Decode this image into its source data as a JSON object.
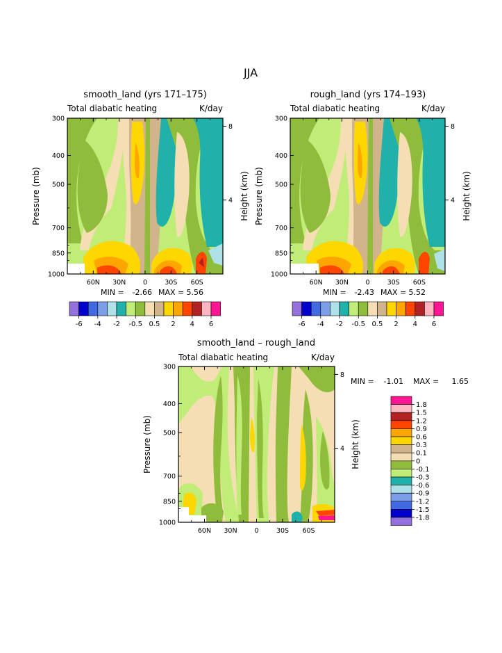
{
  "figure": {
    "season_title": "JJA"
  },
  "palette": [
    {
      "key": "c_n6",
      "hex": "#9370db"
    },
    {
      "key": "c_n5",
      "hex": "#0000cd"
    },
    {
      "key": "c_n4",
      "hex": "#4169e1"
    },
    {
      "key": "c_n3",
      "hex": "#7b9ee6"
    },
    {
      "key": "c_n2",
      "hex": "#aee2e8"
    },
    {
      "key": "c_n1",
      "hex": "#20b2aa"
    },
    {
      "key": "c_m1",
      "hex": "#c0ec78"
    },
    {
      "key": "c_m05",
      "hex": "#8fbc3a"
    },
    {
      "key": "c_p05",
      "hex": "#f5deb3"
    },
    {
      "key": "c_p1",
      "hex": "#d2b48c"
    },
    {
      "key": "c_p2",
      "hex": "#ffd700"
    },
    {
      "key": "c_p3",
      "hex": "#ffa500"
    },
    {
      "key": "c_p4",
      "hex": "#ff4500"
    },
    {
      "key": "c_p5",
      "hex": "#b22222"
    },
    {
      "key": "c_p6",
      "hex": "#ffb6c1"
    },
    {
      "key": "c_p7",
      "hex": "#ff1493"
    }
  ],
  "chart_data": [
    {
      "type": "heatmap",
      "id": "smooth",
      "title": "smooth_land (yrs 171–175)",
      "left_label": "Total diabatic heating",
      "right_label": "K/day",
      "xlabel": "",
      "ylabel": "Pressure (mb)",
      "y2label": "Height (km)",
      "xticks": [
        "60N",
        "30N",
        "0",
        "30S",
        "60S"
      ],
      "x_tick_lat": [
        60,
        30,
        0,
        -30,
        -60
      ],
      "x_range": [
        90,
        -90
      ],
      "pressure_ticks": [
        300,
        400,
        500,
        700,
        850,
        1000
      ],
      "pressure_range": [
        300,
        1000
      ],
      "height_ticks": [
        8,
        4
      ],
      "stats": {
        "min_label": "MIN =",
        "min": "-2.66",
        "max_label": "MAX =",
        "max": "5.56"
      },
      "field": "full"
    },
    {
      "type": "heatmap",
      "id": "rough",
      "title": "rough_land (yrs 174–193)",
      "left_label": "Total diabatic heating",
      "right_label": "K/day",
      "xlabel": "",
      "ylabel": "Pressure (mb)",
      "y2label": "Height (km)",
      "xticks": [
        "60N",
        "30N",
        "0",
        "30S",
        "60S"
      ],
      "x_tick_lat": [
        60,
        30,
        0,
        -30,
        -60
      ],
      "x_range": [
        90,
        -90
      ],
      "pressure_ticks": [
        300,
        400,
        500,
        700,
        850,
        1000
      ],
      "pressure_range": [
        300,
        1000
      ],
      "height_ticks": [
        8,
        4
      ],
      "stats": {
        "min_label": "MIN =",
        "min": "-2.43",
        "max_label": "MAX =",
        "max": "5.52"
      },
      "field": "full"
    },
    {
      "type": "heatmap",
      "id": "diff",
      "title": "smooth_land – rough_land",
      "left_label": "Total diabatic heating",
      "right_label": "K/day",
      "xlabel": "",
      "ylabel": "Pressure (mb)",
      "y2label": "Height (km)",
      "xticks": [
        "60N",
        "30N",
        "0",
        "30S",
        "60S"
      ],
      "x_tick_lat": [
        60,
        30,
        0,
        -30,
        -60
      ],
      "x_range": [
        90,
        -90
      ],
      "pressure_ticks": [
        300,
        400,
        500,
        700,
        850,
        1000
      ],
      "pressure_range": [
        300,
        1000
      ],
      "height_ticks": [
        8,
        4
      ],
      "stats": {
        "min_label": "MIN =",
        "min": "-1.01",
        "max_label": "MAX =",
        "max": "1.65"
      },
      "field": "diff"
    }
  ],
  "colorbar_full": {
    "orientation": "horizontal",
    "labels": [
      "-6",
      "-4",
      "-2",
      "-0.5",
      "0.5",
      "2",
      "4",
      "6"
    ],
    "colors": [
      "c_n6",
      "c_n5",
      "c_n4",
      "c_n3",
      "c_n2",
      "c_n1",
      "c_m1",
      "c_m05",
      "c_p05",
      "c_p1",
      "c_p2",
      "c_p3",
      "c_p4",
      "c_p5",
      "c_p6",
      "c_p7"
    ]
  },
  "colorbar_diff": {
    "orientation": "vertical",
    "labels": [
      "1.8",
      "1.5",
      "1.2",
      "0.9",
      "0.6",
      "0.3",
      "0.1",
      "0",
      "-0.1",
      "-0.3",
      "-0.6",
      "-0.9",
      "-1.2",
      "-1.5",
      "-1.8"
    ],
    "colors": [
      "c_p7",
      "c_p6",
      "c_p5",
      "c_p4",
      "c_p3",
      "c_p2",
      "c_p1",
      "c_p05",
      "c_m05",
      "c_m1",
      "c_n1",
      "c_n2",
      "c_n3",
      "c_n4",
      "c_n5",
      "c_n6"
    ]
  }
}
